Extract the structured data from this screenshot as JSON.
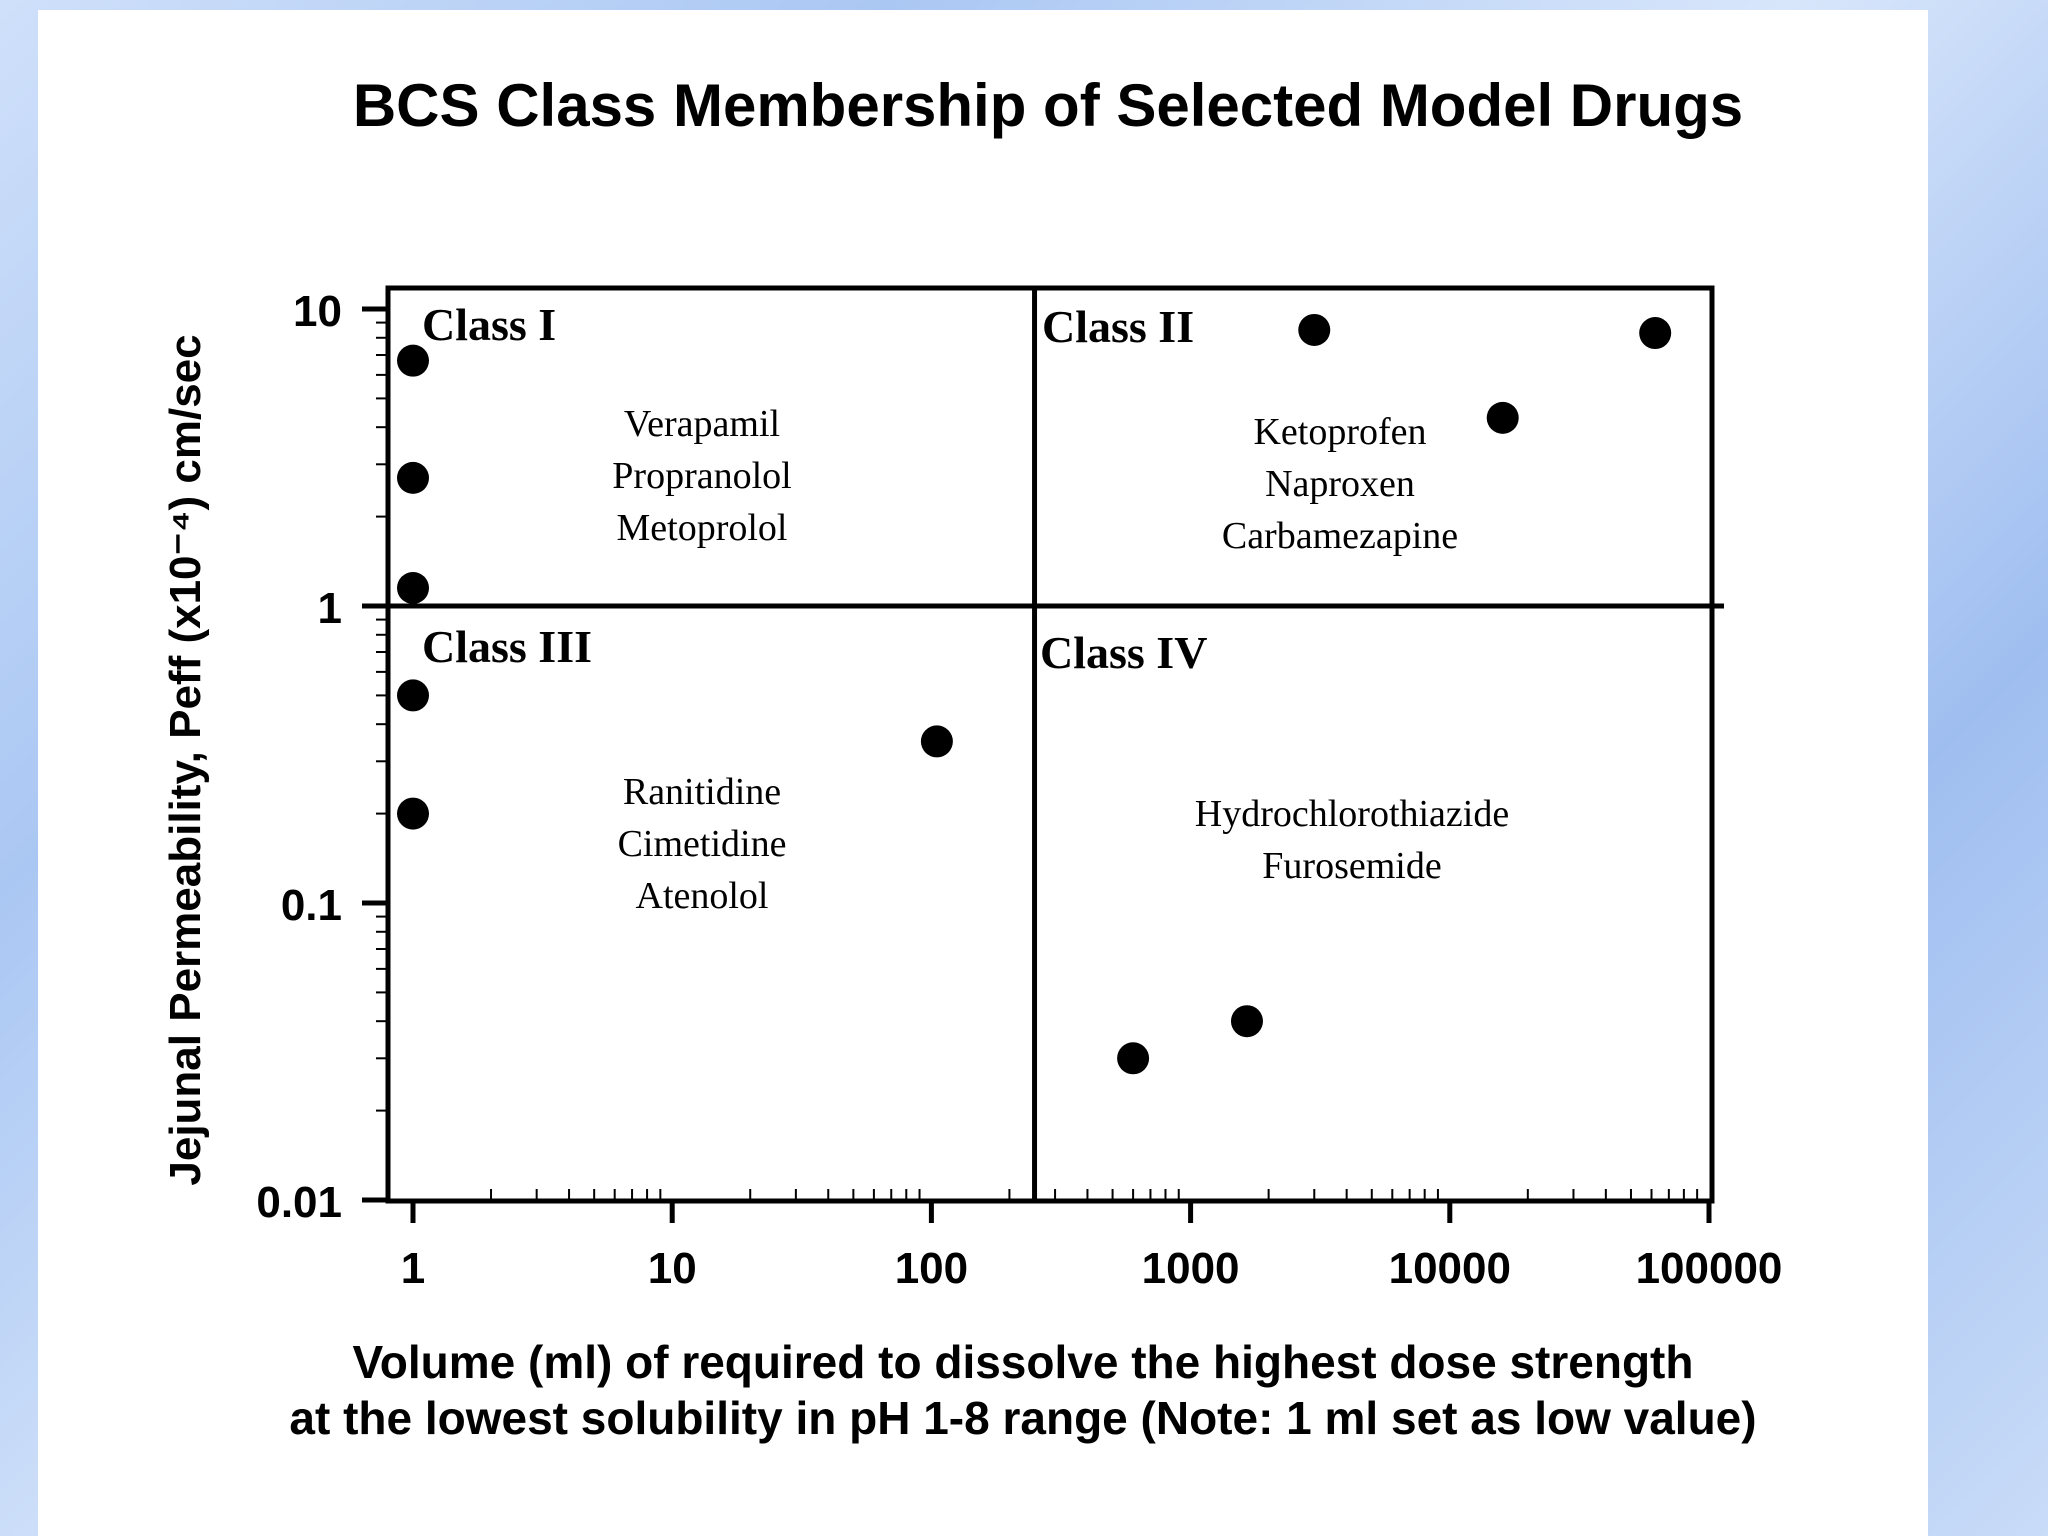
{
  "chart_data": {
    "type": "scatter",
    "title": "BCS Class Membership of Selected Model Drugs",
    "ylabel": "Jejunal Permeability, Peff (x10⁻⁴) cm/sec",
    "xlabel_line1": "Volume (ml) of required to dissolve the highest dose strength",
    "xlabel_line2": "at the lowest solubility in pH 1-8 range (Note: 1 ml set as low value)",
    "x_scale": "log",
    "y_scale": "log",
    "xlim": [
      0.9,
      100000
    ],
    "ylim": [
      0.01,
      12
    ],
    "x_ticks": [
      {
        "value": 1,
        "label": "1"
      },
      {
        "value": 10,
        "label": "10"
      },
      {
        "value": 100,
        "label": "100"
      },
      {
        "value": 1000,
        "label": "1000"
      },
      {
        "value": 10000,
        "label": "10000"
      },
      {
        "value": 100000,
        "label": "100000"
      }
    ],
    "y_ticks": [
      {
        "value": 10,
        "label": "10"
      },
      {
        "value": 1,
        "label": "1"
      },
      {
        "value": 0.1,
        "label": "0.1"
      },
      {
        "value": 0.01,
        "label": "0.01"
      }
    ],
    "x_divider": 250,
    "y_divider": 1,
    "grid": false,
    "classes": [
      {
        "name": "Class I",
        "drugs": [
          "Verapamil",
          "Propranolol",
          "Metoprolol"
        ]
      },
      {
        "name": "Class II",
        "drugs": [
          "Ketoprofen",
          "Naproxen",
          "Carbamezapine"
        ]
      },
      {
        "name": "Class III",
        "drugs": [
          "Ranitidine",
          "Cimetidine",
          "Atenolol"
        ]
      },
      {
        "name": "Class IV",
        "drugs": [
          "Hydrochlorothiazide",
          "Furosemide"
        ]
      }
    ],
    "points": [
      {
        "x": 1,
        "y": 6.7,
        "class": "Class I"
      },
      {
        "x": 1,
        "y": 2.7,
        "class": "Class I"
      },
      {
        "x": 1,
        "y": 1.15,
        "class": "Class I"
      },
      {
        "x": 3000,
        "y": 8.5,
        "class": "Class II"
      },
      {
        "x": 16000,
        "y": 4.3,
        "class": "Class II"
      },
      {
        "x": 62000,
        "y": 8.3,
        "class": "Class II"
      },
      {
        "x": 1,
        "y": 0.5,
        "class": "Class III"
      },
      {
        "x": 1,
        "y": 0.2,
        "class": "Class III"
      },
      {
        "x": 105,
        "y": 0.35,
        "class": "Class III"
      },
      {
        "x": 600,
        "y": 0.03,
        "class": "Class IV"
      },
      {
        "x": 1650,
        "y": 0.04,
        "class": "Class IV"
      }
    ]
  }
}
